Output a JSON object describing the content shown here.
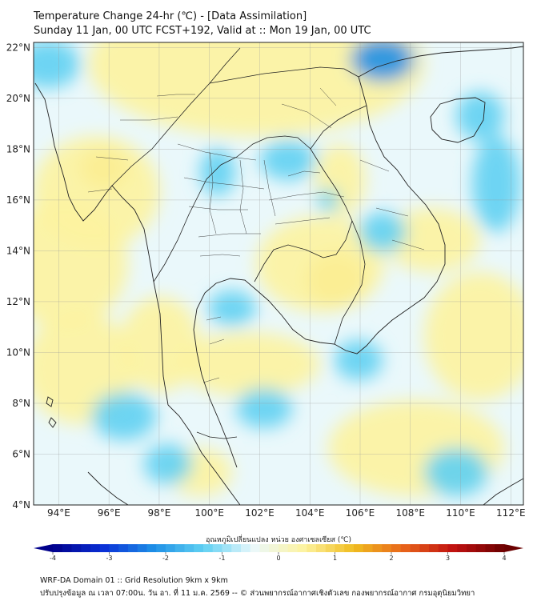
{
  "header": {
    "title": "Temperature Change 24-hr (℃) - [Data Assimilation]",
    "subtitle": "Sunday 11 Jan, 00 UTC FCST+192, Valid at :: Mon 19 Jan, 00 UTC"
  },
  "map": {
    "lon_range": [
      93,
      112.5
    ],
    "lat_range": [
      4,
      22.2
    ],
    "lat_ticks": [
      "22°N",
      "20°N",
      "18°N",
      "16°N",
      "14°N",
      "12°N",
      "10°N",
      "8°N",
      "6°N",
      "4°N"
    ],
    "lon_ticks": [
      "94°E",
      "96°E",
      "98°E",
      "100°E",
      "102°E",
      "104°E",
      "106°E",
      "108°E",
      "110°E",
      "112°E"
    ],
    "grid": true,
    "field_colors": {
      "cold_strong": "#1e8fe6",
      "cold": "#5fd0f2",
      "neutral": "#eaf8fb",
      "warm": "#fdf3a0",
      "warm_strong": "#f0bd20"
    }
  },
  "colorbar": {
    "title": "อุณหภูมิเปลี่ยนแปลง หน่วย องศาเซลเซียส (℃)",
    "min": -4,
    "max": 4,
    "tick_labels": [
      "-4",
      "-3",
      "-2",
      "-1",
      "0",
      "1",
      "2",
      "3",
      "4"
    ],
    "colors": [
      "#00008b",
      "#0a2fd6",
      "#1e8fe6",
      "#5fd0f2",
      "#eaf8fb",
      "#fdf3a0",
      "#f0bd20",
      "#e8641a",
      "#c01010",
      "#6b0000"
    ]
  },
  "footer": {
    "line1": "WRF-DA Domain 01 :: Grid Resolution 9km x 9km",
    "line2": "ปรับปรุงข้อมูล ณ เวลา 07:00น. วัน อา. ที่ 11 ม.ค. 2569 -- © ส่วนพยากรณ์อากาศเชิงตัวเลข กองพยากรณ์อากาศ กรมอุตุนิยมวิทยา"
  }
}
